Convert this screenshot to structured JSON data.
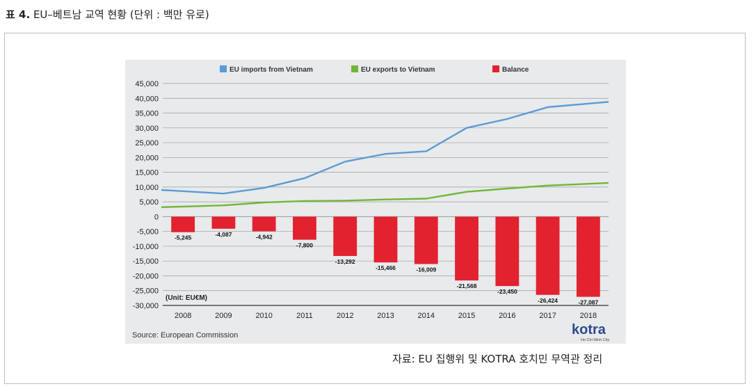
{
  "caption": {
    "prefix": "표 4.",
    "text": "EU–베트남 교역 현황 (단위 : 백만 유로)"
  },
  "source_note": "자료: EU 집행위 및 KOTRA 호치민 무역관 정리",
  "colors": {
    "imports": "#5b9bd5",
    "exports": "#70b738",
    "balance": "#e2222f",
    "panel": "#e8eaec",
    "grid": "#9a9a9a"
  },
  "chart_data": {
    "type": "bar",
    "categories": [
      "2008",
      "2009",
      "2010",
      "2011",
      "2012",
      "2013",
      "2014",
      "2015",
      "2016",
      "2017",
      "2018"
    ],
    "series": [
      {
        "name": "EU imports from Vietnam",
        "type": "line",
        "values": [
          8600,
          7800,
          9700,
          13000,
          18600,
          21200,
          22100,
          30000,
          33000,
          37000,
          38200
        ]
      },
      {
        "name": "EU exports to Vietnam",
        "type": "line",
        "values": [
          3400,
          3800,
          4800,
          5300,
          5400,
          5800,
          6100,
          8400,
          9500,
          10500,
          11100
        ]
      },
      {
        "name": "Balance",
        "type": "bar",
        "values": [
          -5245,
          -4087,
          -4942,
          -7800,
          -13292,
          -15466,
          -16009,
          -21568,
          -23450,
          -26424,
          -27087
        ],
        "labels": [
          "-5,245",
          "-4,087",
          "-4,942",
          "-7,800",
          "-13,292",
          "-15,466",
          "-16,009",
          "-21,568",
          "-23,450",
          "-26,424",
          "-27,087"
        ]
      }
    ],
    "yticks": [
      "45,000",
      "40,000",
      "35,000",
      "30,000",
      "25,000",
      "20,000",
      "15,000",
      "10,000",
      "5,000",
      "0",
      "-5,000",
      "-10,000",
      "-15,000",
      "-20,000",
      "-25,000",
      "-30,000"
    ],
    "ylim": [
      -30000,
      45000
    ],
    "unit_label": "(Unit: EU€M)",
    "source": "Source: European Commission",
    "grid": true,
    "legend_position": "top"
  },
  "logo": {
    "name": "kotra",
    "sub": "Ho Chi Minh City"
  }
}
